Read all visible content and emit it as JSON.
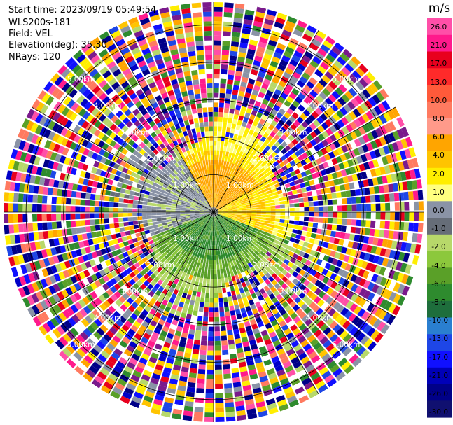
{
  "header": {
    "start_time": "Start time: 2023/09/19 05:49:54",
    "station": "WLS200s-181",
    "field": "Field: VEL",
    "elevation": "Elevation(deg): 35.30",
    "nrays": "NRays: 120"
  },
  "chart_data": {
    "type": "ppi-polar",
    "field": "VEL",
    "unit": "m/s",
    "nrays": 120,
    "elevation_deg": 35.3,
    "range_rings_km": [
      1.0,
      2.0,
      3.0,
      4.0,
      5.0
    ],
    "ring_label_texts": [
      "1.00km",
      "2.00km",
      "3.00km",
      "4.00km",
      "5.00km"
    ],
    "max_range_km": 5.6,
    "spokes_deg": [
      0,
      30,
      60,
      90,
      120,
      150,
      180,
      210,
      240,
      270,
      300,
      330
    ],
    "colorbar": {
      "ticks": [
        "26.0",
        "21.0",
        "17.0",
        "13.0",
        "10.0",
        "8.0",
        "6.0",
        "4.0",
        "2.0",
        "1.0",
        "0.0",
        "-1.0",
        "-2.0",
        "-4.0",
        "-6.0",
        "-8.0",
        "-10.0",
        "-13.0",
        "-17.0",
        "-21.0",
        "-26.0",
        "-30.0"
      ],
      "colors": [
        "#ff4fa8",
        "#ff1a8c",
        "#e8001e",
        "#ff2a2a",
        "#ff5a3a",
        "#ff7a60",
        "#ff9a8a",
        "#ffa500",
        "#ffc400",
        "#ffee00",
        "#ffff80",
        "#8a93a6",
        "#666d78",
        "#b7d86a",
        "#8cc83c",
        "#5aa028",
        "#2e8b2e",
        "#1e6e3c",
        "#2a7fd0",
        "#1e46e6",
        "#1010ff",
        "#0000b8",
        "#000088",
        "#101070"
      ]
    }
  },
  "colors": {
    "grid": "#000000",
    "ring_label": "#ffffff",
    "background": "#ffffff"
  }
}
